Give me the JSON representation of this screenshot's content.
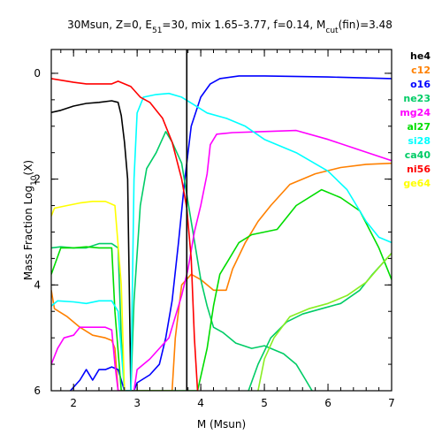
{
  "chart_data": {
    "type": "line",
    "title": {
      "parts": [
        {
          "t": "30Msun, Z=0, E"
        },
        {
          "t": "51",
          "sub": true
        },
        {
          "t": "=30, mix 1.65–3.77, f=0.14, M"
        },
        {
          "t": "cut",
          "sub": true
        },
        {
          "t": "(fin)=3.48"
        }
      ]
    },
    "xlabel": "M (Msun)",
    "ylabel": {
      "parts": [
        {
          "t": "Mass Fraction Log"
        },
        {
          "t": "10",
          "sub": true
        },
        {
          "t": "(X)"
        }
      ]
    },
    "xlim": [
      1.65,
      7.0
    ],
    "ylim": [
      -6,
      0.45
    ],
    "xticks": [
      2,
      3,
      4,
      5,
      6,
      7
    ],
    "yticks": [
      0,
      -2,
      -4,
      -6
    ],
    "xtick_labels": [
      "2",
      "3",
      "4",
      "5",
      "6",
      "7"
    ],
    "ytick_labels": [
      "0",
      "2",
      "4",
      "6"
    ],
    "vline": {
      "x": 3.78,
      "color": "#000000"
    },
    "grid": false,
    "legend_position": "right-outside",
    "series": [
      {
        "name": "he4",
        "color": "#000000",
        "points": [
          [
            1.65,
            -0.74
          ],
          [
            1.8,
            -0.7
          ],
          [
            2.0,
            -0.62
          ],
          [
            2.2,
            -0.57
          ],
          [
            2.4,
            -0.55
          ],
          [
            2.6,
            -0.52
          ],
          [
            2.7,
            -0.55
          ],
          [
            2.75,
            -0.8
          ],
          [
            2.8,
            -1.3
          ],
          [
            2.85,
            -2.0
          ],
          [
            2.9,
            -6.0
          ]
        ]
      },
      {
        "name": "c12",
        "color": "#ff8000",
        "points": [
          [
            1.65,
            -4.1
          ],
          [
            1.7,
            -4.45
          ],
          [
            1.9,
            -4.6
          ],
          [
            2.1,
            -4.8
          ],
          [
            2.3,
            -4.95
          ],
          [
            2.5,
            -5.0
          ],
          [
            2.6,
            -5.05
          ],
          [
            2.65,
            -5.2
          ],
          [
            2.7,
            -6.0
          ],
          [
            3.55,
            -6.0
          ],
          [
            3.6,
            -5.0
          ],
          [
            3.7,
            -4.0
          ],
          [
            3.85,
            -3.8
          ],
          [
            4.0,
            -3.9
          ],
          [
            4.2,
            -4.1
          ],
          [
            4.4,
            -4.1
          ],
          [
            4.5,
            -3.7
          ],
          [
            4.7,
            -3.2
          ],
          [
            4.9,
            -2.8
          ],
          [
            5.1,
            -2.5
          ],
          [
            5.4,
            -2.1
          ],
          [
            5.8,
            -1.9
          ],
          [
            6.2,
            -1.78
          ],
          [
            6.6,
            -1.72
          ],
          [
            7.0,
            -1.7
          ]
        ]
      },
      {
        "name": "o16",
        "color": "#0000ff",
        "points": [
          [
            1.95,
            -6.0
          ],
          [
            2.1,
            -5.8
          ],
          [
            2.2,
            -5.6
          ],
          [
            2.3,
            -5.8
          ],
          [
            2.4,
            -5.6
          ],
          [
            2.5,
            -5.6
          ],
          [
            2.6,
            -5.55
          ],
          [
            2.7,
            -5.6
          ],
          [
            2.8,
            -6.0
          ],
          [
            2.95,
            -6.0
          ],
          [
            3.0,
            -5.85
          ],
          [
            3.2,
            -5.7
          ],
          [
            3.35,
            -5.5
          ],
          [
            3.45,
            -5.0
          ],
          [
            3.55,
            -4.3
          ],
          [
            3.65,
            -3.2
          ],
          [
            3.75,
            -2.0
          ],
          [
            3.85,
            -1.0
          ],
          [
            4.0,
            -0.45
          ],
          [
            4.15,
            -0.2
          ],
          [
            4.3,
            -0.1
          ],
          [
            4.6,
            -0.05
          ],
          [
            5.0,
            -0.05
          ],
          [
            6.0,
            -0.07
          ],
          [
            7.0,
            -0.1
          ]
        ]
      },
      {
        "name": "ne23",
        "color": "#00cc66",
        "points": [
          [
            1.65,
            -3.3
          ],
          [
            1.8,
            -3.28
          ],
          [
            2.0,
            -3.3
          ],
          [
            2.2,
            -3.3
          ],
          [
            2.4,
            -3.22
          ],
          [
            2.6,
            -3.22
          ],
          [
            2.7,
            -3.3
          ],
          [
            2.75,
            -5.0
          ],
          [
            2.8,
            -6.0
          ],
          [
            2.9,
            -6.0
          ],
          [
            2.95,
            -4.3
          ],
          [
            3.05,
            -2.5
          ],
          [
            3.15,
            -1.8
          ],
          [
            3.3,
            -1.5
          ],
          [
            3.45,
            -1.1
          ],
          [
            3.55,
            -1.3
          ],
          [
            3.7,
            -1.7
          ],
          [
            3.85,
            -2.8
          ],
          [
            4.0,
            -3.9
          ],
          [
            4.1,
            -4.4
          ],
          [
            4.2,
            -4.8
          ],
          [
            4.35,
            -4.9
          ],
          [
            4.55,
            -5.1
          ],
          [
            4.8,
            -5.2
          ],
          [
            5.0,
            -5.15
          ],
          [
            5.3,
            -5.3
          ],
          [
            5.5,
            -5.5
          ],
          [
            5.65,
            -5.8
          ],
          [
            5.75,
            -6.0
          ]
        ]
      },
      {
        "name": "mg24",
        "color": "#ff00ff",
        "points": [
          [
            1.65,
            -5.5
          ],
          [
            1.75,
            -5.2
          ],
          [
            1.85,
            -5.0
          ],
          [
            2.0,
            -4.95
          ],
          [
            2.1,
            -4.8
          ],
          [
            2.3,
            -4.8
          ],
          [
            2.5,
            -4.8
          ],
          [
            2.6,
            -4.85
          ],
          [
            2.65,
            -5.5
          ],
          [
            2.7,
            -6.0
          ],
          [
            2.95,
            -6.0
          ],
          [
            3.0,
            -5.6
          ],
          [
            3.2,
            -5.4
          ],
          [
            3.35,
            -5.2
          ],
          [
            3.5,
            -5.0
          ],
          [
            3.6,
            -4.6
          ],
          [
            3.7,
            -4.2
          ],
          [
            3.8,
            -3.7
          ],
          [
            3.9,
            -3.0
          ],
          [
            4.0,
            -2.5
          ],
          [
            4.1,
            -1.9
          ],
          [
            4.15,
            -1.35
          ],
          [
            4.25,
            -1.15
          ],
          [
            4.5,
            -1.12
          ],
          [
            5.0,
            -1.1
          ],
          [
            5.5,
            -1.08
          ],
          [
            6.0,
            -1.25
          ],
          [
            6.5,
            -1.45
          ],
          [
            7.0,
            -1.65
          ]
        ]
      },
      {
        "name": "al27",
        "color": "#00dd00",
        "points": [
          [
            1.65,
            -3.8
          ],
          [
            1.8,
            -3.3
          ],
          [
            2.0,
            -3.3
          ],
          [
            2.2,
            -3.28
          ],
          [
            2.4,
            -3.3
          ],
          [
            2.6,
            -3.3
          ],
          [
            2.65,
            -4.5
          ],
          [
            2.75,
            -6.0
          ],
          [
            3.95,
            -6.0
          ],
          [
            4.1,
            -5.2
          ],
          [
            4.2,
            -4.4
          ],
          [
            4.3,
            -3.8
          ],
          [
            4.45,
            -3.5
          ],
          [
            4.6,
            -3.2
          ],
          [
            4.8,
            -3.05
          ],
          [
            5.0,
            -3.0
          ],
          [
            5.2,
            -2.95
          ],
          [
            5.5,
            -2.5
          ],
          [
            5.9,
            -2.2
          ],
          [
            6.2,
            -2.35
          ],
          [
            6.5,
            -2.6
          ],
          [
            6.8,
            -3.3
          ],
          [
            7.0,
            -3.9
          ]
        ]
      },
      {
        "name": "si28",
        "color": "#00ffff",
        "points": [
          [
            1.65,
            -4.4
          ],
          [
            1.75,
            -4.3
          ],
          [
            2.0,
            -4.32
          ],
          [
            2.2,
            -4.35
          ],
          [
            2.4,
            -4.3
          ],
          [
            2.6,
            -4.3
          ],
          [
            2.7,
            -4.5
          ],
          [
            2.8,
            -6.0
          ],
          [
            2.9,
            -6.0
          ],
          [
            2.95,
            -2.0
          ],
          [
            3.0,
            -0.75
          ],
          [
            3.1,
            -0.45
          ],
          [
            3.3,
            -0.4
          ],
          [
            3.5,
            -0.38
          ],
          [
            3.7,
            -0.45
          ],
          [
            3.9,
            -0.6
          ],
          [
            4.1,
            -0.75
          ],
          [
            4.4,
            -0.85
          ],
          [
            4.7,
            -1.0
          ],
          [
            5.0,
            -1.25
          ],
          [
            5.5,
            -1.5
          ],
          [
            6.0,
            -1.85
          ],
          [
            6.3,
            -2.2
          ],
          [
            6.6,
            -2.8
          ],
          [
            6.8,
            -3.1
          ],
          [
            7.0,
            -3.2
          ]
        ]
      },
      {
        "name": "ca40",
        "color": "#00cc66",
        "points": [
          [
            4.75,
            -6.0
          ],
          [
            4.9,
            -5.5
          ],
          [
            5.1,
            -5.0
          ],
          [
            5.35,
            -4.7
          ],
          [
            5.6,
            -4.55
          ],
          [
            5.9,
            -4.45
          ],
          [
            6.2,
            -4.35
          ],
          [
            6.5,
            -4.1
          ],
          [
            6.7,
            -3.8
          ],
          [
            6.85,
            -3.6
          ],
          [
            7.0,
            -3.4
          ]
        ]
      },
      {
        "name": "ni56",
        "color": "#ff0000",
        "points": [
          [
            1.65,
            -0.1
          ],
          [
            1.8,
            -0.13
          ],
          [
            2.0,
            -0.17
          ],
          [
            2.2,
            -0.2
          ],
          [
            2.4,
            -0.2
          ],
          [
            2.6,
            -0.2
          ],
          [
            2.7,
            -0.15
          ],
          [
            2.9,
            -0.25
          ],
          [
            3.05,
            -0.45
          ],
          [
            3.2,
            -0.55
          ],
          [
            3.4,
            -0.85
          ],
          [
            3.55,
            -1.3
          ],
          [
            3.7,
            -2.0
          ],
          [
            3.78,
            -2.55
          ],
          [
            3.85,
            -3.5
          ],
          [
            3.9,
            -5.0
          ],
          [
            3.95,
            -6.0
          ]
        ]
      },
      {
        "name": "ge64",
        "color": "#ffff00",
        "points": [
          [
            1.65,
            -2.7
          ],
          [
            1.7,
            -2.55
          ],
          [
            1.9,
            -2.5
          ],
          [
            2.1,
            -2.45
          ],
          [
            2.3,
            -2.42
          ],
          [
            2.5,
            -2.42
          ],
          [
            2.65,
            -2.5
          ],
          [
            2.75,
            -4.0
          ],
          [
            2.8,
            -6.0
          ]
        ]
      },
      {
        "name": "",
        "color": "#88ee22",
        "points": [
          [
            4.9,
            -6.0
          ],
          [
            5.0,
            -5.4
          ],
          [
            5.15,
            -5.0
          ],
          [
            5.4,
            -4.6
          ],
          [
            5.7,
            -4.45
          ],
          [
            6.0,
            -4.35
          ],
          [
            6.3,
            -4.2
          ],
          [
            6.6,
            -3.95
          ],
          [
            6.85,
            -3.6
          ],
          [
            7.0,
            -3.4
          ]
        ]
      }
    ]
  }
}
